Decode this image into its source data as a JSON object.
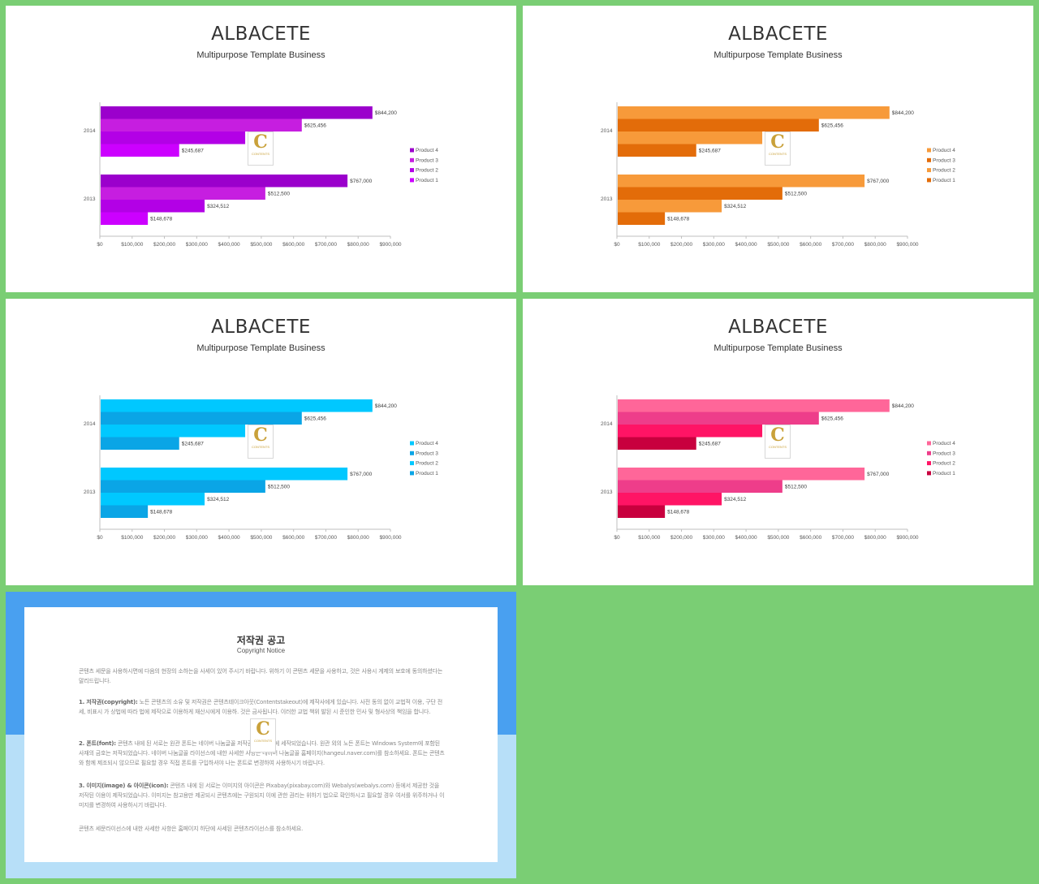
{
  "slides": [
    {
      "title": "ALBACETE",
      "subtitle": "Multipurpose Template Business",
      "theme_colors": [
        "#cc00ff",
        "#b300e6",
        "#c61ee0",
        "#9b00cc"
      ]
    },
    {
      "title": "ALBACETE",
      "subtitle": "Multipurpose Template Business",
      "theme_colors": [
        "#e36c09",
        "#f79a3a",
        "#e36c09",
        "#f79a3a"
      ]
    },
    {
      "title": "ALBACETE",
      "subtitle": "Multipurpose Template Business",
      "theme_colors": [
        "#0aa5e6",
        "#00c8ff",
        "#0aa5e6",
        "#00c8ff"
      ]
    },
    {
      "title": "ALBACETE",
      "subtitle": "Multipurpose Template Business",
      "theme_colors": [
        "#c8003e",
        "#ff1465",
        "#ee3d8a",
        "#ff6699"
      ]
    }
  ],
  "watermark": {
    "letter": "C",
    "text": "CONTENTS"
  },
  "chart_data": {
    "type": "bar",
    "orientation": "horizontal",
    "categories": [
      "2013",
      "2014"
    ],
    "series": [
      {
        "name": "Product 1",
        "values": [
          148678,
          245687
        ]
      },
      {
        "name": "Product 2",
        "values": [
          324512,
          450154
        ]
      },
      {
        "name": "Product 3",
        "values": [
          512500,
          625456
        ]
      },
      {
        "name": "Product 4",
        "values": [
          767000,
          844200
        ]
      }
    ],
    "data_labels": {
      "2013": [
        "$148,678",
        "$324,512",
        "$512,500",
        "$767,000"
      ],
      "2014": [
        "$245,687",
        "$450,154",
        "$625,456",
        "$844,200"
      ]
    },
    "x_ticks": [
      "$0",
      "$100,000",
      "$200,000",
      "$300,000",
      "$400,000",
      "$500,000",
      "$600,000",
      "$700,000",
      "$800,000",
      "$900,000"
    ],
    "xlim": [
      0,
      900000
    ],
    "legend": [
      "Product 4",
      "Product 3",
      "Product 2",
      "Product 1"
    ],
    "legend_position": "right",
    "grid": false
  },
  "copyright": {
    "title": "저작권 공고",
    "subtitle": "Copyright Notice",
    "intro": "콘텐츠 세문을 사용하시면에 다음의 현장의 소하는을 사세이 있어 주시기 바랍니다. 위하기 이 콘텐츠 세문을 사용하고, 것은 사용시 게제의 보호에 동의하셨다는 말리드립니다.",
    "p1_head": "1. 저작권(copyright):",
    "p1_body": "노든 콘텐츠의 소유 및 저작권은 콘텐츠테이크아웃(Contentstakeout)에 제작사에게 있습니다. 사전 동의 없이 교법적 이용, 구단 전세, 비표시 가 상법에 따라 법에 제작으로 이용하게 재산시에게 이용하. 것은 금사됩니다. 이러한 교법 책위 발된 시 준인한 민사 및 형사상의 책임을 합니다.",
    "p2_head": "2. 폰트(font):",
    "p2_body": "콘텐츠 내에 된 서로는 원관 폰트는 네이버 나눔글꼴 저작권은 제작사에 세작되었습니다. 원관 외의 노든 폰트는 Windows System에 포함된 사재의 금호는 저작되었습니다. 네이버 나눔글꼴 라이선스에 내한 사세한 사항은 네이버 나눔글꼴 홈페이지(hangeul.naver.com)를 참소하세요. 폰트는 콘텐츠와 함께 제조되시 않으므로 필요할 경우 직접 폰트를 구입하셔야 나는 폰트로 변경하여 사용하시기 바랍니다.",
    "p3_head": "3. 이미지(image) & 아이콘(icon):",
    "p3_body": "콘텐츠 내에 된 서로는 이미지의 아이콘은 Pixabay(pixabay.com)와 Webalys(webalys.com) 등에서 제공한 것을 저작된 이용이 제작되었습니다. 이미지는 참고용만 제공되시 콘텐츠에는 구원되지 이에 관한 권리는 위하기 법으로 확인하시고 필요할 경우 여서를 위주하거나 이미지를 변경하여 사용하시기 바랍니다.",
    "outro": "콘텐츠 세문라이선스에 내한 사세한 사항은 홈페이지 하단에 사세된 콘텐츠라이선스를 참소하세요."
  }
}
